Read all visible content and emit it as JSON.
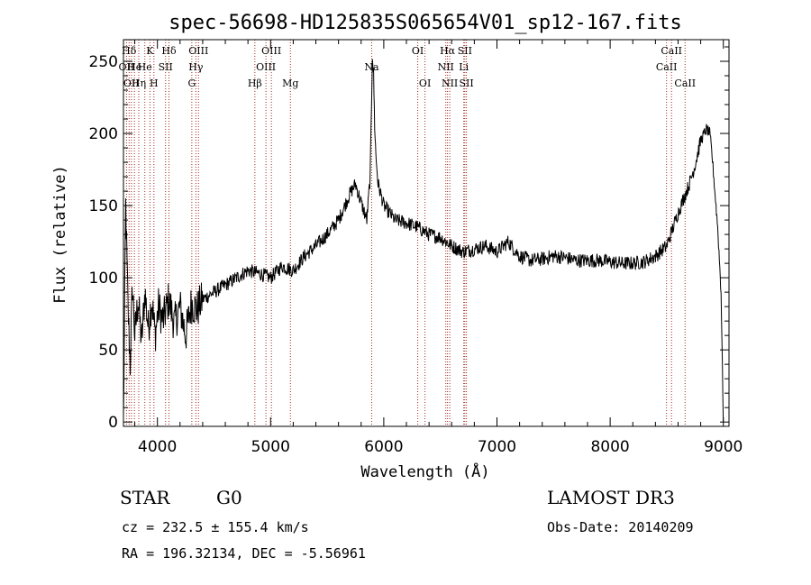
{
  "chart_data": {
    "type": "line",
    "title": "spec-56698-HD125835S065654V01_sp12-167.fits",
    "xlabel": "Wavelength (Å)",
    "ylabel": "Flux (relative)",
    "xlim": [
      3700,
      9050
    ],
    "ylim": [
      -3,
      265
    ],
    "xticks": [
      4000,
      5000,
      6000,
      7000,
      8000,
      9000
    ],
    "yticks": [
      0,
      50,
      100,
      150,
      200,
      250
    ],
    "grid": false,
    "series": [
      {
        "color": "#000000",
        "x": [
          3700,
          3720,
          3740,
          3760,
          3780,
          3800,
          3830,
          3860,
          3890,
          3920,
          3950,
          3980,
          4010,
          4050,
          4100,
          4150,
          4200,
          4250,
          4300,
          4350,
          4400,
          4500,
          4600,
          4700,
          4800,
          4900,
          5000,
          5100,
          5200,
          5300,
          5400,
          5500,
          5600,
          5700,
          5750,
          5800,
          5850,
          5880,
          5900,
          5910,
          5920,
          5930,
          5950,
          6000,
          6100,
          6200,
          6300,
          6400,
          6500,
          6600,
          6700,
          6800,
          6900,
          7000,
          7100,
          7200,
          7300,
          7400,
          7500,
          7600,
          7700,
          7800,
          7900,
          8000,
          8100,
          8200,
          8300,
          8400,
          8500,
          8600,
          8700,
          8750,
          8800,
          8850,
          8880,
          8900,
          8920,
          8950,
          8980,
          9000
        ],
        "y": [
          0,
          150,
          80,
          40,
          95,
          60,
          85,
          55,
          90,
          65,
          85,
          60,
          80,
          70,
          85,
          68,
          80,
          60,
          82,
          78,
          85,
          90,
          95,
          100,
          105,
          103,
          100,
          108,
          105,
          115,
          122,
          130,
          140,
          158,
          165,
          152,
          140,
          170,
          255,
          240,
          205,
          185,
          165,
          150,
          140,
          138,
          135,
          130,
          128,
          122,
          118,
          120,
          122,
          118,
          125,
          115,
          112,
          113,
          115,
          114,
          112,
          112,
          112,
          111,
          110,
          110,
          111,
          115,
          122,
          145,
          165,
          178,
          195,
          203,
          200,
          185,
          165,
          135,
          90,
          0
        ]
      }
    ],
    "reference_lines": [
      {
        "x": 3727,
        "row": 1,
        "label": "OII"
      },
      {
        "x": 3750,
        "row": 0,
        "label": "Hδ"
      },
      {
        "x": 3770,
        "row": 2,
        "label": "OII"
      },
      {
        "x": 3797,
        "row": 1,
        "label": "He"
      },
      {
        "x": 3835,
        "row": 2,
        "label": "Hη"
      },
      {
        "x": 3889,
        "row": 1,
        "label": "He"
      },
      {
        "x": 3934,
        "row": 0,
        "label": "K"
      },
      {
        "x": 3969,
        "row": 2,
        "label": "H"
      },
      {
        "x": 4072,
        "row": 1,
        "label": "SII"
      },
      {
        "x": 4102,
        "row": 0,
        "label": "Hδ"
      },
      {
        "x": 4304,
        "row": 2,
        "label": "G"
      },
      {
        "x": 4340,
        "row": 1,
        "label": "Hγ"
      },
      {
        "x": 4363,
        "row": 0,
        "label": "OIII"
      },
      {
        "x": 4861,
        "row": 2,
        "label": "Hβ"
      },
      {
        "x": 4959,
        "row": 1,
        "label": "OIII"
      },
      {
        "x": 5007,
        "row": 0,
        "label": "OIII"
      },
      {
        "x": 5175,
        "row": 2,
        "label": "Mg"
      },
      {
        "x": 5893,
        "row": 1,
        "label": "Na"
      },
      {
        "x": 6300,
        "row": 0,
        "label": "OI"
      },
      {
        "x": 6364,
        "row": 2,
        "label": "OI"
      },
      {
        "x": 6548,
        "row": 1,
        "label": "NII"
      },
      {
        "x": 6563,
        "row": 0,
        "label": "Hα"
      },
      {
        "x": 6583,
        "row": 2,
        "label": "NII"
      },
      {
        "x": 6707,
        "row": 1,
        "label": "Li"
      },
      {
        "x": 6716,
        "row": 0,
        "label": "SII"
      },
      {
        "x": 6730,
        "row": 2,
        "label": "SII"
      },
      {
        "x": 8498,
        "row": 1,
        "label": "CaII"
      },
      {
        "x": 8542,
        "row": 0,
        "label": "CaII"
      },
      {
        "x": 8662,
        "row": 2,
        "label": "CaII"
      }
    ]
  },
  "info": {
    "class": "STAR",
    "subclass": "G0",
    "survey": "LAMOST DR3",
    "cz": "cz = 232.5 ± 155.4 km/s",
    "obs_date": "Obs-Date: 20140209",
    "coords": "RA = 196.32134, DEC =  -5.56961"
  }
}
